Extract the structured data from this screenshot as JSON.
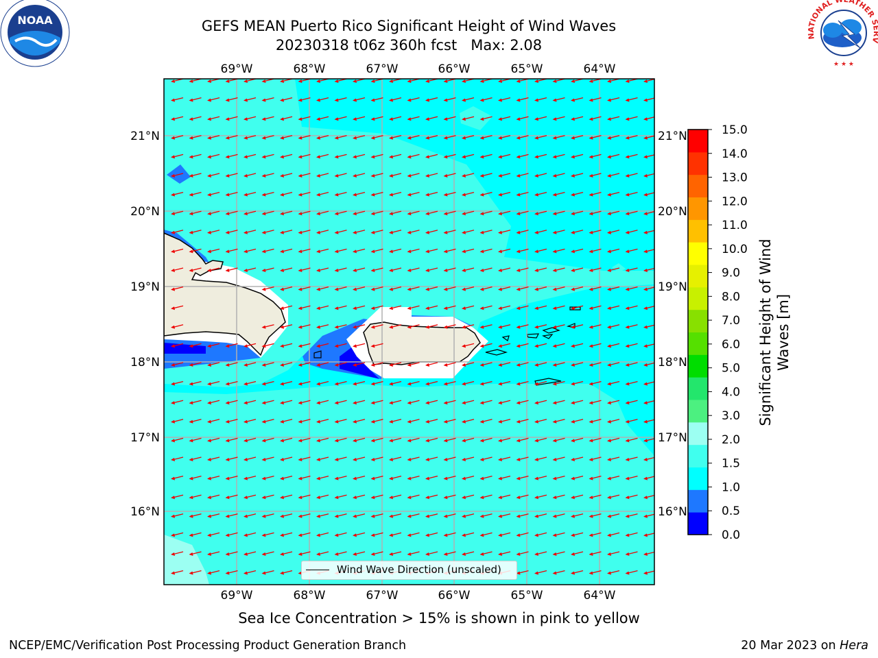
{
  "title": {
    "line1": "GEFS MEAN Puerto Rico Significant Height of Wind Waves",
    "line2": "20230318 t06z 360h fcst   Max: 2.08"
  },
  "logos": {
    "left": {
      "name": "noaa-logo",
      "text": "NOAA"
    },
    "right": {
      "name": "nws-logo",
      "text": "NATIONAL WEATHER SERVICE"
    }
  },
  "map": {
    "lon_ticks": [
      "69°W",
      "68°W",
      "67°W",
      "66°W",
      "65°W",
      "64°W"
    ],
    "lat_ticks": [
      "21°N",
      "20°N",
      "19°N",
      "18°N",
      "17°N",
      "16°N"
    ],
    "vector_color": "#ee0000",
    "land_color": "#efedde",
    "ocean_color": "#00ffff",
    "legend": "Wind Wave Direction (unscaled)"
  },
  "colorbar": {
    "label": "Significant Height of Wind Waves [m]",
    "ticks": [
      "15.0",
      "14.0",
      "13.0",
      "12.0",
      "11.0",
      "10.0",
      "9.0",
      "8.0",
      "7.0",
      "6.0",
      "5.0",
      "4.0",
      "3.0",
      "2.0",
      "1.5",
      "1.0",
      "0.5",
      "0.0"
    ],
    "colors": [
      "#0000ff",
      "#1e78ff",
      "#00ffff",
      "#40ffee",
      "#9cfff2",
      "#4cf080",
      "#23e66c",
      "#00dd00",
      "#55e000",
      "#88e000",
      "#c8f000",
      "#e6f000",
      "#ffff00",
      "#ffc000",
      "#ff9600",
      "#ff6400",
      "#ff3200",
      "#ff0000"
    ]
  },
  "ice_note": "Sea Ice Concentration > 15% is shown in pink to yellow",
  "footer": {
    "left": "NCEP/EMC/Verification Post Processing Product Generation Branch",
    "right_date": "20 Mar 2023 on ",
    "right_host": "Hera"
  }
}
